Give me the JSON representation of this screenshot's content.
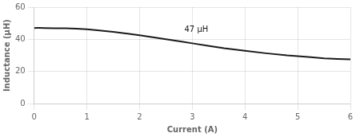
{
  "chart_data": {
    "type": "line",
    "xlabel": "Current (A)",
    "ylabel": "Inductance (μH)",
    "x": [
      0,
      0.05,
      0.1,
      0.2,
      0.4,
      0.6,
      0.8,
      1.0,
      1.2,
      1.5,
      1.8,
      2.0,
      2.3,
      2.6,
      2.8,
      3.0,
      3.3,
      3.6,
      4.0,
      4.4,
      4.8,
      5.2,
      5.5,
      5.75,
      6.0
    ],
    "values": [
      47.0,
      47.1,
      47.1,
      47.0,
      46.9,
      46.8,
      46.6,
      46.2,
      45.6,
      44.6,
      43.4,
      42.5,
      41.0,
      39.5,
      38.5,
      37.5,
      36.0,
      34.5,
      32.8,
      31.3,
      30.0,
      29.0,
      28.2,
      27.8,
      27.5
    ],
    "color": "#1a1a1a",
    "annotations": [
      {
        "text": "47 μH",
        "x": 2.85,
        "y": 43.5
      }
    ],
    "xlim": [
      0,
      6
    ],
    "ylim": [
      0,
      60
    ],
    "xticks": [
      0,
      1,
      2,
      3,
      4,
      5,
      6
    ],
    "yticks": [
      0,
      20,
      40,
      60
    ],
    "grid": true
  }
}
